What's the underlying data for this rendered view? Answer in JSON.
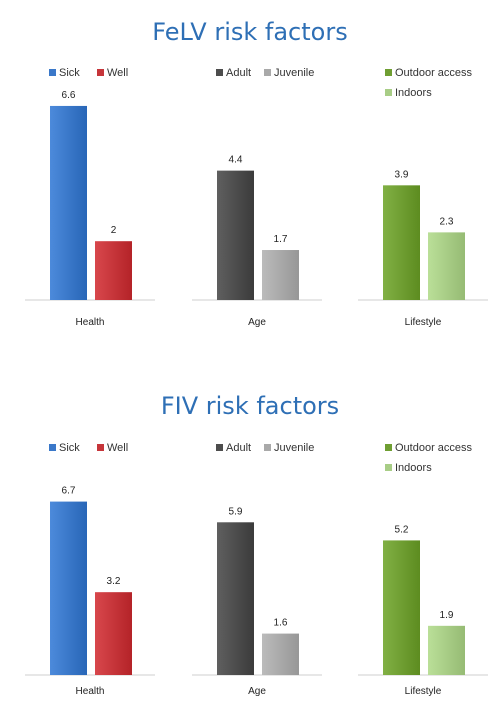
{
  "chart_data": [
    {
      "type": "bar",
      "title": "FeLV risk factors",
      "groups": [
        {
          "category": "Health",
          "series": [
            {
              "name": "Sick",
              "value": 6.6,
              "color": "#3a78c9"
            },
            {
              "name": "Well",
              "value": 2,
              "color": "#c6353a"
            }
          ],
          "legend_layout": "row"
        },
        {
          "category": "Age",
          "series": [
            {
              "name": "Adult",
              "value": 4.4,
              "color": "#4d4d4d"
            },
            {
              "name": "Juvenile",
              "value": 1.7,
              "color": "#a9a9a9"
            }
          ],
          "legend_layout": "row"
        },
        {
          "category": "Lifestyle",
          "series": [
            {
              "name": "Outdoor access",
              "value": 3.9,
              "color": "#6f9e32"
            },
            {
              "name": "Indoors",
              "value": 2.3,
              "color": "#a8cd86"
            }
          ],
          "legend_layout": "stacked"
        }
      ],
      "ylim": [
        0,
        6.7
      ],
      "grid": false
    },
    {
      "type": "bar",
      "title": "FIV risk factors",
      "groups": [
        {
          "category": "Health",
          "series": [
            {
              "name": "Sick",
              "value": 6.7,
              "color": "#3a78c9"
            },
            {
              "name": "Well",
              "value": 3.2,
              "color": "#c6353a"
            }
          ],
          "legend_layout": "row"
        },
        {
          "category": "Age",
          "series": [
            {
              "name": "Adult",
              "value": 5.9,
              "color": "#4d4d4d"
            },
            {
              "name": "Juvenile",
              "value": 1.6,
              "color": "#a9a9a9"
            }
          ],
          "legend_layout": "row"
        },
        {
          "category": "Lifestyle",
          "series": [
            {
              "name": "Outdoor access",
              "value": 5.2,
              "color": "#6f9e32"
            },
            {
              "name": "Indoors",
              "value": 1.9,
              "color": "#a8cd86"
            }
          ],
          "legend_layout": "stacked"
        }
      ],
      "ylim": [
        0,
        6.8
      ],
      "grid": false
    }
  ]
}
